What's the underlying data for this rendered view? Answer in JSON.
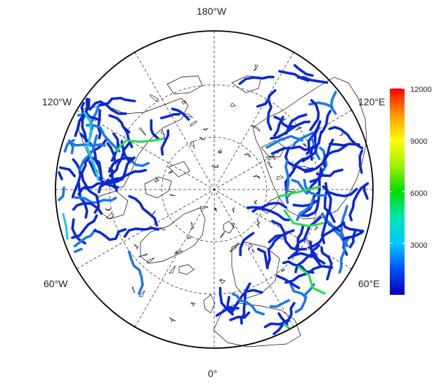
{
  "map": {
    "projection": "north polar stereographic",
    "longitude_labels": {
      "top": "180°W",
      "bottom": "0°",
      "upper_left": "120°W",
      "upper_right": "120°E",
      "lower_left": "60°W",
      "lower_right": "60°E"
    },
    "graticule_style": "dashed",
    "coastline_color": "#000000",
    "background_color": "#ffffff"
  },
  "colorbar": {
    "min": 0,
    "max": 12000,
    "ticks": [
      "3000",
      "6000",
      "9000",
      "12000"
    ],
    "colors": [
      "#0000b4",
      "#0050ff",
      "#00c8ff",
      "#00e6b4",
      "#00dc00",
      "#a0f000",
      "#ffff00",
      "#ff9600",
      "#ff0000"
    ]
  },
  "river_colors": {
    "low": "#0a28d2",
    "mid": "#1e78e6",
    "cyan": "#14c8e6",
    "green": "#28dc50"
  }
}
